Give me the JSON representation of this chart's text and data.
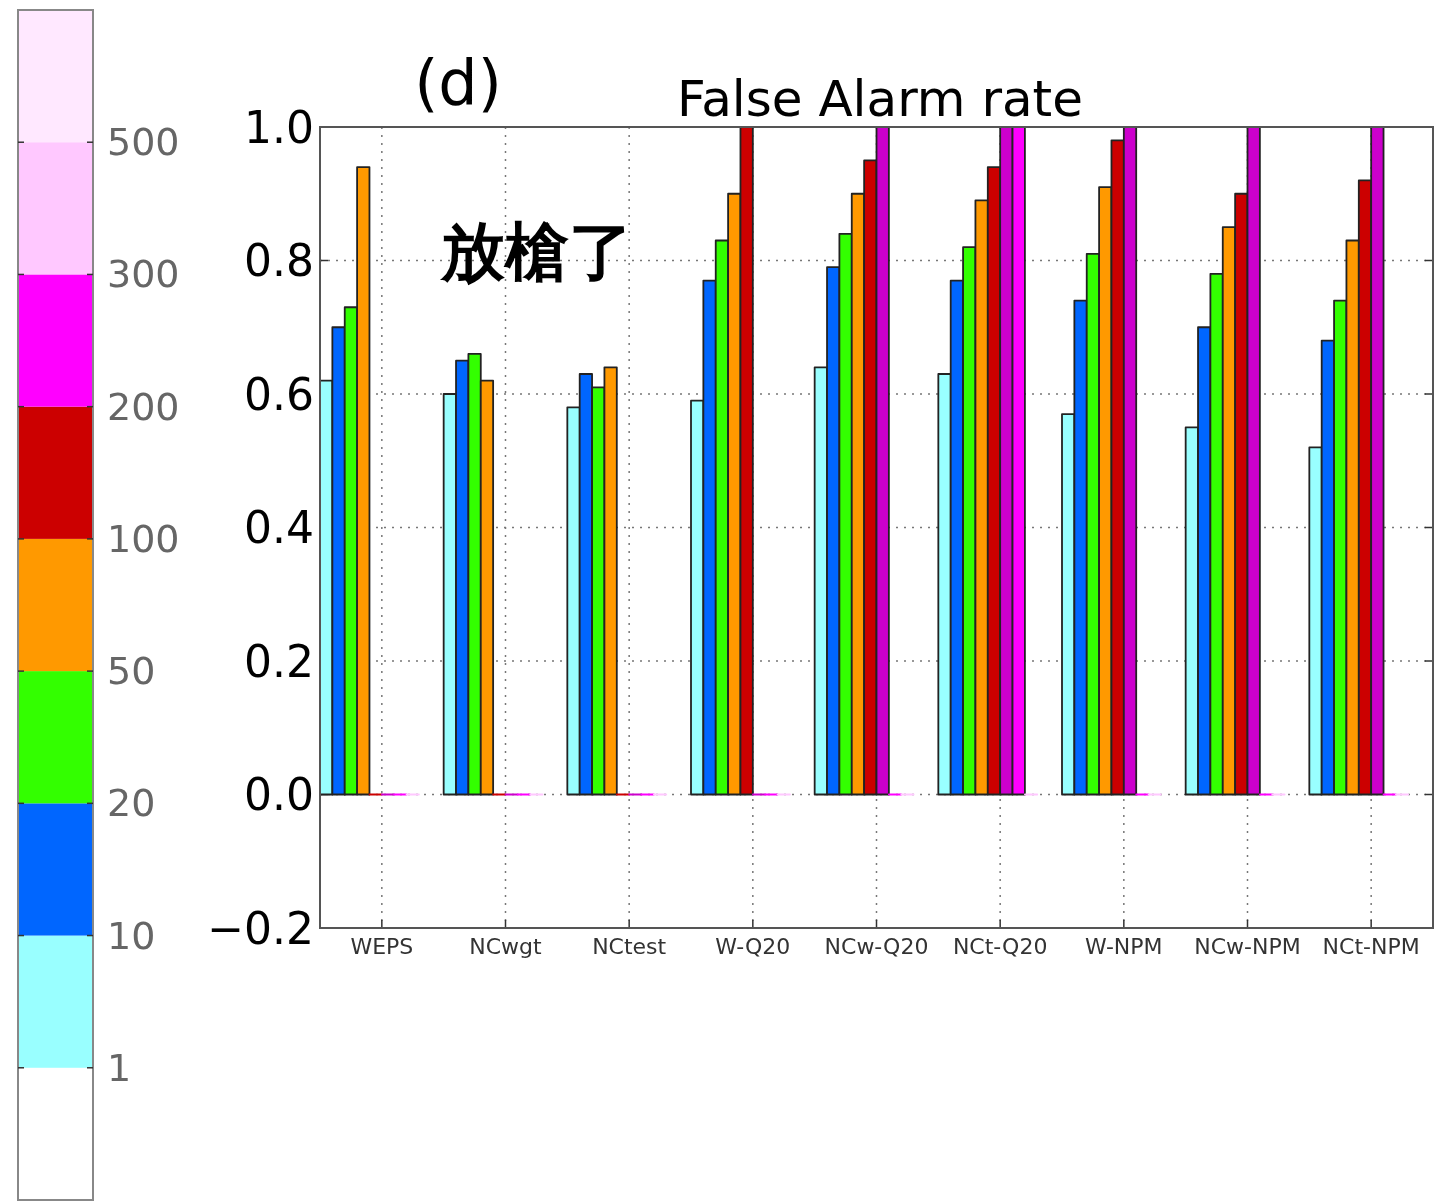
{
  "chart_data": [
    {
      "type": "other",
      "colors": [
        "#ffffff",
        "#99ffff",
        "#0066ff",
        "#33ff00",
        "#ff9900",
        "#cc0000",
        "#ff00ff",
        "#ffc8ff",
        "#ffe8ff"
      ],
      "annotations": [
        "1",
        "10",
        "20",
        "50",
        "100",
        "200",
        "300",
        "500"
      ]
    },
    {
      "type": "bar",
      "title": "False Alarm rate",
      "annotations": [
        "(d)",
        "放槍了"
      ],
      "categories": [
        "WEPS",
        "NCwgt",
        "NCtest",
        "W-Q20",
        "NCw-Q20",
        "NCt-Q20",
        "W-NPM",
        "NCw-NPM",
        "NCt-NPM"
      ],
      "series": [
        {
          "color": "#99ffff",
          "values": [
            0.62,
            0.6,
            0.58,
            0.59,
            0.64,
            0.63,
            0.57,
            0.55,
            0.52
          ]
        },
        {
          "color": "#0066ff",
          "values": [
            0.7,
            0.65,
            0.63,
            0.77,
            0.79,
            0.77,
            0.74,
            0.7,
            0.68
          ]
        },
        {
          "color": "#33ff00",
          "values": [
            0.73,
            0.66,
            0.61,
            0.83,
            0.84,
            0.82,
            0.81,
            0.78,
            0.74
          ]
        },
        {
          "color": "#ff9900",
          "values": [
            0.94,
            0.62,
            0.64,
            0.9,
            0.9,
            0.89,
            0.91,
            0.85,
            0.83
          ]
        },
        {
          "color": "#cc0000",
          "values": [
            0,
            0,
            0,
            1.0,
            0.95,
            0.94,
            0.98,
            0.9,
            0.92
          ]
        },
        {
          "color": "#cc00cc",
          "values": [
            0,
            0,
            0,
            0,
            1.0,
            1.0,
            1.0,
            1.0,
            1.0
          ]
        },
        {
          "color": "#ff00ff",
          "values": [
            0,
            0,
            0,
            0,
            0,
            1.0,
            0,
            0,
            0
          ]
        },
        {
          "color": "#ffc8ff",
          "values": [
            0,
            0,
            0,
            0,
            0,
            0,
            0,
            0,
            0
          ]
        }
      ],
      "ylim": [
        -0.2,
        1.0
      ],
      "yticks": [
        {
          "value": -0.2,
          "label": "−0.2"
        },
        {
          "value": 0.0,
          "label": "0.0"
        },
        {
          "value": 0.2,
          "label": "0.2"
        },
        {
          "value": 0.4,
          "label": "0.4"
        },
        {
          "value": 0.6,
          "label": "0.6"
        },
        {
          "value": 0.8,
          "label": "0.8"
        },
        {
          "value": 1.0,
          "label": "1.0"
        }
      ],
      "grid": true
    }
  ]
}
